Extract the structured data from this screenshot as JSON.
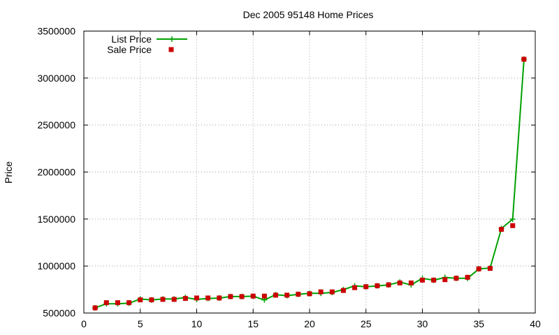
{
  "chart_data": {
    "type": "line",
    "title": "Dec 2005 95148 Home Prices",
    "xlabel": "",
    "ylabel": "Price",
    "xlim": [
      0,
      40
    ],
    "ylim": [
      500000,
      3500000
    ],
    "xticks": [
      0,
      5,
      10,
      15,
      20,
      25,
      30,
      35,
      40
    ],
    "yticks": [
      500000,
      1000000,
      1500000,
      2000000,
      2500000,
      3000000,
      3500000
    ],
    "grid": true,
    "legend_position": "top-left",
    "series": [
      {
        "name": "List Price",
        "marker": "plus",
        "color": "#00a000",
        "line": true,
        "x": [
          1,
          2,
          3,
          4,
          5,
          6,
          7,
          8,
          9,
          10,
          11,
          12,
          13,
          14,
          15,
          16,
          17,
          18,
          19,
          20,
          21,
          22,
          23,
          24,
          25,
          26,
          27,
          28,
          29,
          30,
          31,
          32,
          33,
          34,
          35,
          36,
          37,
          38,
          39
        ],
        "y": [
          555000,
          599000,
          599000,
          605000,
          649000,
          639000,
          649000,
          649000,
          665000,
          645000,
          655000,
          659000,
          675000,
          675000,
          679000,
          639000,
          695000,
          685000,
          699000,
          710000,
          710000,
          719000,
          749000,
          789000,
          779000,
          789000,
          799000,
          829000,
          799000,
          869000,
          849000,
          879000,
          869000,
          869000,
          969000,
          979000,
          1399000,
          1499000,
          3200000
        ]
      },
      {
        "name": "Sale Price",
        "marker": "square",
        "color": "#cc0000",
        "line": false,
        "x": [
          1,
          2,
          3,
          4,
          5,
          6,
          7,
          8,
          9,
          10,
          11,
          12,
          13,
          14,
          15,
          16,
          17,
          18,
          19,
          20,
          21,
          22,
          23,
          24,
          25,
          26,
          27,
          28,
          29,
          30,
          31,
          32,
          33,
          34,
          35,
          36,
          37,
          38,
          39
        ],
        "y": [
          555000,
          610000,
          610000,
          610000,
          640000,
          640000,
          645000,
          645000,
          655000,
          660000,
          660000,
          660000,
          675000,
          675000,
          680000,
          680000,
          690000,
          690000,
          700000,
          705000,
          725000,
          725000,
          740000,
          770000,
          780000,
          790000,
          800000,
          820000,
          820000,
          850000,
          850000,
          855000,
          870000,
          880000,
          970000,
          975000,
          1390000,
          1430000,
          3200000
        ]
      }
    ]
  }
}
